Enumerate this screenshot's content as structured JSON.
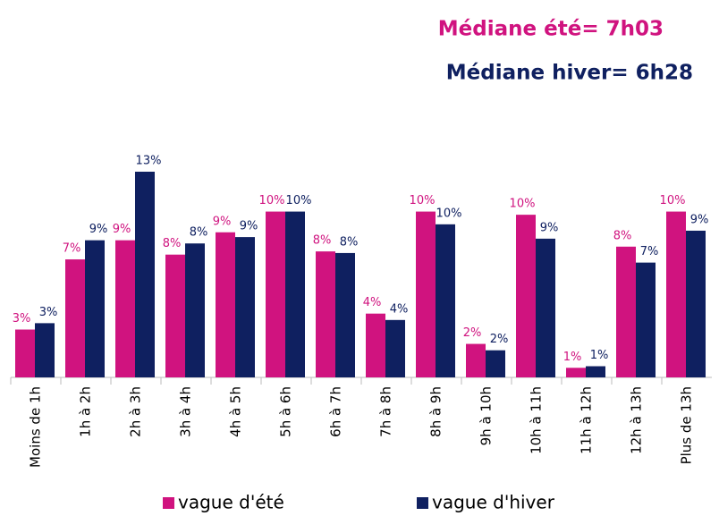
{
  "chart_data": {
    "type": "bar",
    "annotations": [
      "Médiane été= 7h03",
      "Médiane hiver= 6h28"
    ],
    "categories": [
      "Moins de 1h",
      "1h à 2h",
      "2h à 3h",
      "3h à 4h",
      "4h à 5h",
      "5h à 6h",
      "6h à 7h",
      "7h à 8h",
      "8h à 9h",
      "9h à 10h",
      "10h à 11h",
      "11h à 12h",
      "12h à 13h",
      "Plus de 13h"
    ],
    "series": [
      {
        "name": "vague d'été",
        "color": "#d0137f",
        "values": [
          3.0,
          7.4,
          8.6,
          7.7,
          9.1,
          10.4,
          7.9,
          4.0,
          10.4,
          2.1,
          10.2,
          0.6,
          8.2,
          10.4
        ],
        "value_labels": [
          "3%",
          "7%",
          "9%",
          "8%",
          "9%",
          "10%",
          "8%",
          "4%",
          "10%",
          "2%",
          "10%",
          "1%",
          "8%",
          "10%"
        ]
      },
      {
        "name": "vague d'hiver",
        "color": "#0f2060",
        "values": [
          3.4,
          8.6,
          12.9,
          8.4,
          8.8,
          10.4,
          7.8,
          3.6,
          9.6,
          1.7,
          8.7,
          0.7,
          7.2,
          9.2
        ],
        "value_labels": [
          "3%",
          "9%",
          "13%",
          "8%",
          "9%",
          "10%",
          "8%",
          "4%",
          "10%",
          "2%",
          "9%",
          "1%",
          "7%",
          "9%"
        ]
      }
    ]
  }
}
